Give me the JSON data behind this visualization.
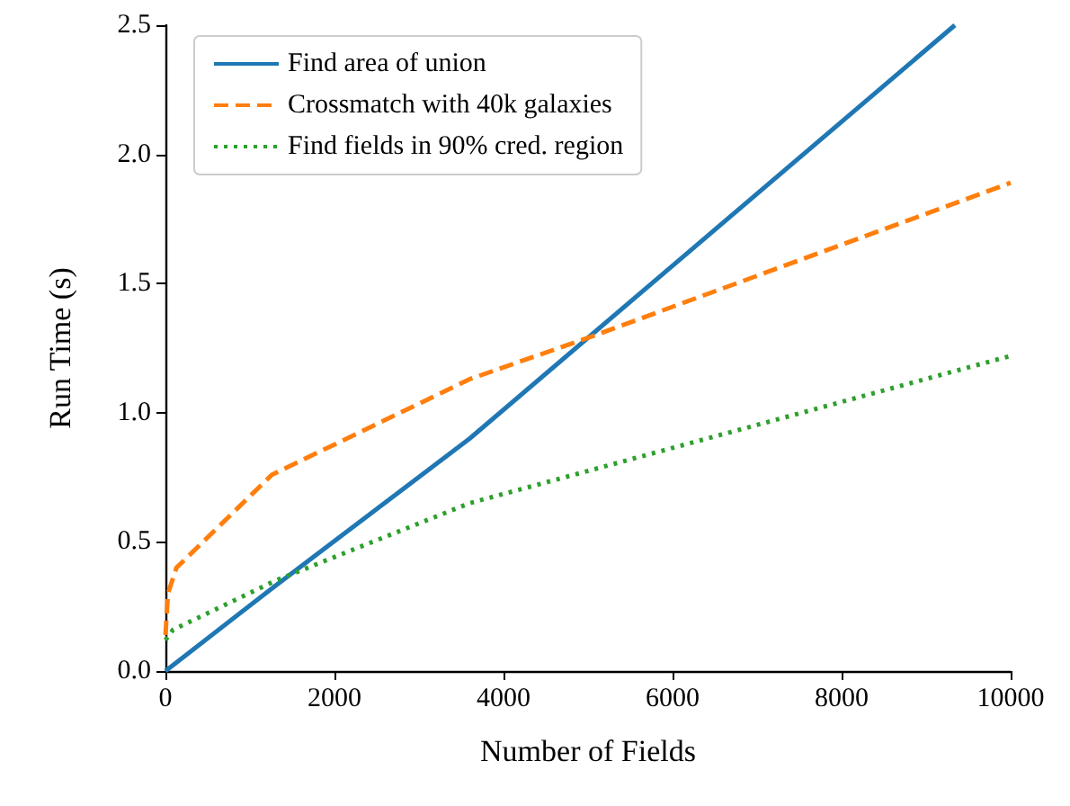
{
  "chart_data": {
    "type": "line",
    "xlabel": "Number of Fields",
    "ylabel": "Run Time (s)",
    "xlim": [
      0,
      10000
    ],
    "ylim": [
      0,
      2.5
    ],
    "xticks": [
      0,
      2000,
      4000,
      6000,
      8000,
      10000
    ],
    "yticks": [
      {
        "value": 0,
        "label": "0.0"
      },
      0.5,
      {
        "value": 1,
        "label": "1.0"
      },
      1.5,
      {
        "value": 2,
        "label": "2.0"
      },
      2.5
    ],
    "legend": "top left",
    "grid": false,
    "series": [
      {
        "name": "Find area of union",
        "color": "#1f77b4",
        "line_style": "solid",
        "x": [
          0,
          1300,
          3600,
          9340
        ],
        "values": [
          0,
          0.33,
          0.9,
          2.5
        ]
      },
      {
        "name": "Crossmatch with 40k galaxies",
        "color": "#ff7f0e",
        "line_style": "dashed",
        "x": [
          0,
          30,
          130,
          1260,
          3600,
          5000,
          10000
        ],
        "values": [
          0.14,
          0.3,
          0.4,
          0.76,
          1.13,
          1.29,
          1.89
        ]
      },
      {
        "name": "Find fields in 90% cred. region",
        "color": "#2ca02c",
        "line_style": "dotted",
        "x": [
          0,
          90,
          1300,
          3600,
          10000
        ],
        "values": [
          0.12,
          0.16,
          0.35,
          0.65,
          1.22
        ]
      }
    ]
  }
}
